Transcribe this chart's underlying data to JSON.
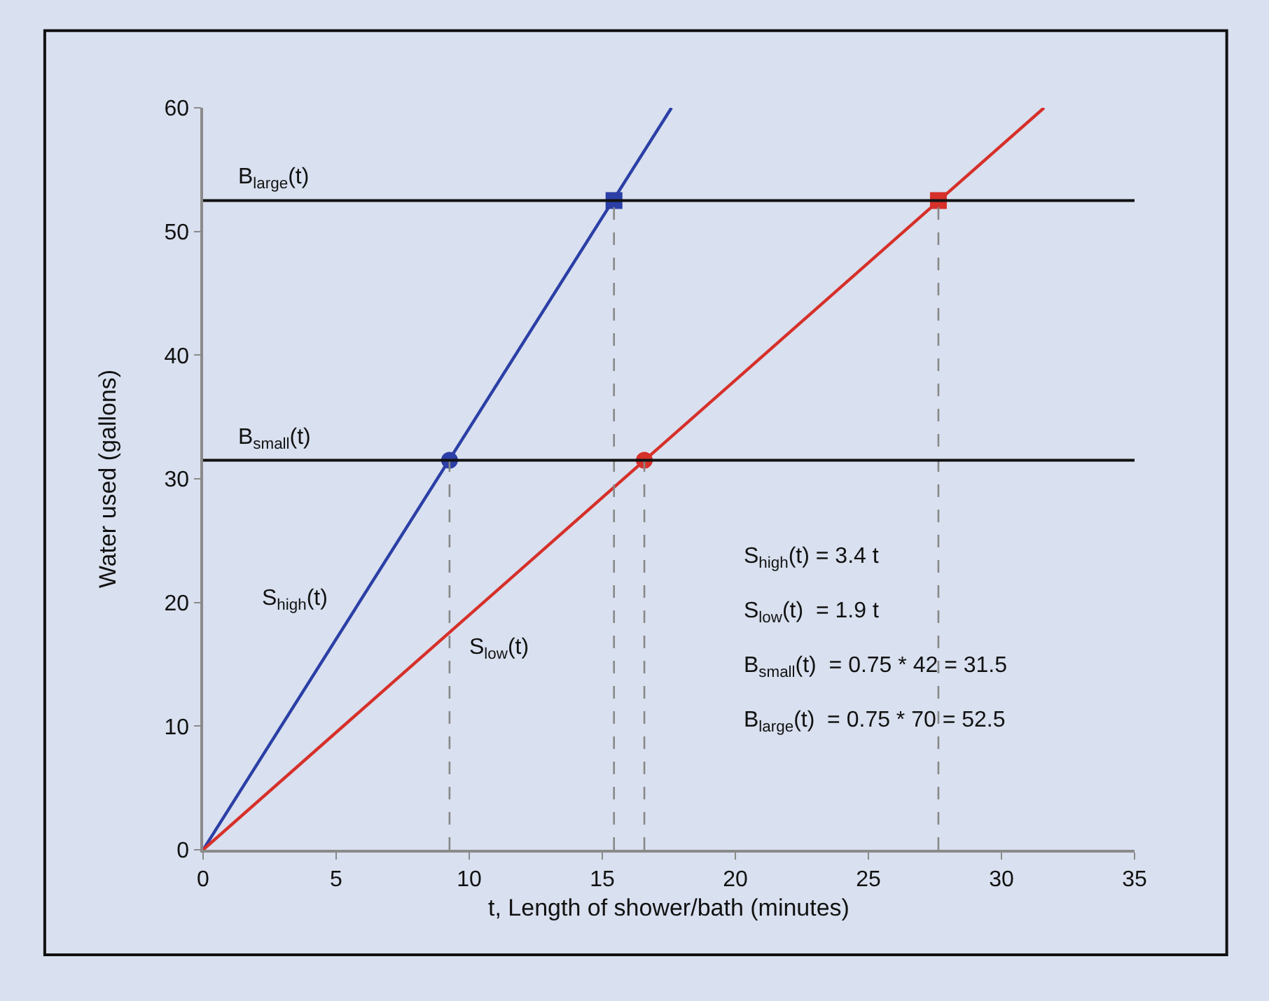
{
  "chart_data": {
    "type": "line",
    "xlabel": "t, Length of shower/bath (minutes)",
    "ylabel": "Water used (gallons)",
    "xlim": [
      0,
      35
    ],
    "xticks": [
      0,
      5,
      10,
      15,
      20,
      25,
      30,
      35
    ],
    "ylim": [
      0,
      60
    ],
    "yticks": [
      0,
      10,
      20,
      30,
      40,
      50,
      60
    ],
    "grid": false,
    "series": [
      {
        "color": "#2b3fa6",
        "x": [
          0,
          17.6
        ],
        "values": [
          0,
          60
        ]
      },
      {
        "color": "#d6302a",
        "x": [
          0,
          31.6
        ],
        "values": [
          0,
          60
        ]
      },
      {
        "type": "scatter",
        "marker": "circle",
        "color": "#2b3fa6",
        "x": [
          9.26
        ],
        "values": [
          31.5
        ]
      },
      {
        "type": "scatter",
        "marker": "square",
        "color": "#2b3fa6",
        "x": [
          15.44
        ],
        "values": [
          52.5
        ]
      },
      {
        "type": "scatter",
        "marker": "circle",
        "color": "#d6302a",
        "x": [
          16.58
        ],
        "values": [
          31.5
        ]
      },
      {
        "type": "scatter",
        "marker": "square",
        "color": "#d6302a",
        "x": [
          27.63
        ],
        "values": [
          52.5
        ]
      },
      {
        "line_style": "dashed",
        "color": "#888888",
        "x": [
          9.26,
          9.26
        ],
        "values": [
          0,
          31.5
        ]
      },
      {
        "line_style": "dashed",
        "color": "#888888",
        "x": [
          15.44,
          15.44
        ],
        "values": [
          0,
          52.5
        ]
      },
      {
        "line_style": "dashed",
        "color": "#888888",
        "x": [
          16.58,
          16.58
        ],
        "values": [
          0,
          31.5
        ]
      },
      {
        "line_style": "dashed",
        "color": "#888888",
        "x": [
          27.63,
          27.63
        ],
        "values": [
          0,
          52.5
        ]
      }
    ],
    "ref_lines": [
      {
        "axis": "y",
        "value": 52.5,
        "label": "B$_{large}$(t)",
        "color": "#111111"
      },
      {
        "axis": "y",
        "value": 31.5,
        "label": "B$_{small}$(t)",
        "color": "#111111"
      }
    ],
    "annotations": [
      "S$_{high}$(t)",
      "S$_{low}$(t)",
      "S$_{high}$(t) = 3.4 t",
      "S$_{low}$(t)  = 1.9 t",
      "B$_{small}$(t)  = 0.75 * 42 = 31.5",
      "B$_{large}$(t)  = 0.75 * 70 = 52.5"
    ]
  }
}
